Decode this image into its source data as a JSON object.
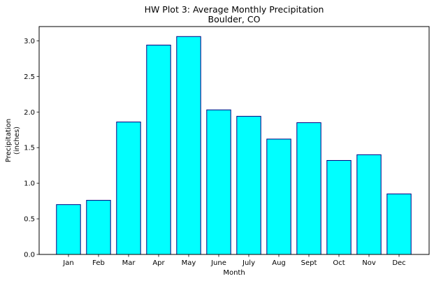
{
  "chart_data": {
    "type": "bar",
    "title": "HW Plot 3: Average Monthly Precipitation",
    "subtitle": "Boulder, CO",
    "xlabel": "Month",
    "ylabel_line1": "Precipitation",
    "ylabel_line2": "(inches)",
    "categories": [
      "Jan",
      "Feb",
      "Mar",
      "Apr",
      "May",
      "June",
      "July",
      "Aug",
      "Sept",
      "Oct",
      "Nov",
      "Dec"
    ],
    "values": [
      0.7,
      0.76,
      1.86,
      2.94,
      3.06,
      2.03,
      1.94,
      1.62,
      1.85,
      1.32,
      1.4,
      0.85
    ],
    "ylim": [
      0,
      3.2
    ],
    "yticks": [
      "0.0",
      "0.5",
      "1.0",
      "1.5",
      "2.0",
      "2.5",
      "3.0"
    ],
    "grid": false,
    "bar_color": "#00ffff",
    "bar_edge_color": "#000080"
  }
}
